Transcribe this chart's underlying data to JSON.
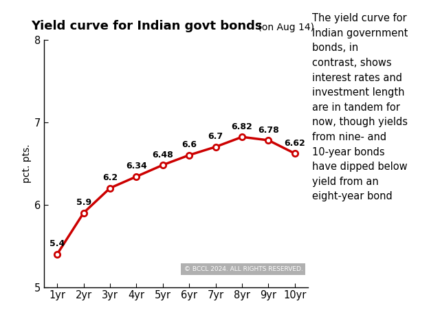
{
  "x_labels": [
    "1yr",
    "2yr",
    "3yr",
    "4yr",
    "5yr",
    "6yr",
    "7yr",
    "8yr",
    "9yr",
    "10yr"
  ],
  "x_values": [
    1,
    2,
    3,
    4,
    5,
    6,
    7,
    8,
    9,
    10
  ],
  "y_values": [
    5.4,
    5.9,
    6.2,
    6.34,
    6.48,
    6.6,
    6.7,
    6.82,
    6.78,
    6.62
  ],
  "y_labels": [
    "5.4",
    "5.9",
    "6.2",
    "6.34",
    "6.48",
    "6.6",
    "6.7",
    "6.82",
    "6.78",
    "6.62"
  ],
  "title_main": "Yield curve for Indian govt bonds",
  "title_sub": " (on Aug 14)",
  "ylabel": "pct. pts.",
  "ylim": [
    5,
    8
  ],
  "yticks": [
    5,
    6,
    7,
    8
  ],
  "line_color": "#cc0000",
  "marker_face": "#ffffff",
  "bg_color": "#ffffff",
  "side_text": "The yield curve for\nIndian government\nbonds, in\ncontrast, shows\ninterest rates and\ninvestment length\nare in tandem for\nnow, though yields\nfrom nine- and\n10-year bonds\nhave dipped below\nyield from an\neight-year bond",
  "watermark": "© BCCL 2024. ALL RIGHTS RESERVED.",
  "watermark_bg": "#b0b0b0",
  "watermark_color": "#ffffff"
}
